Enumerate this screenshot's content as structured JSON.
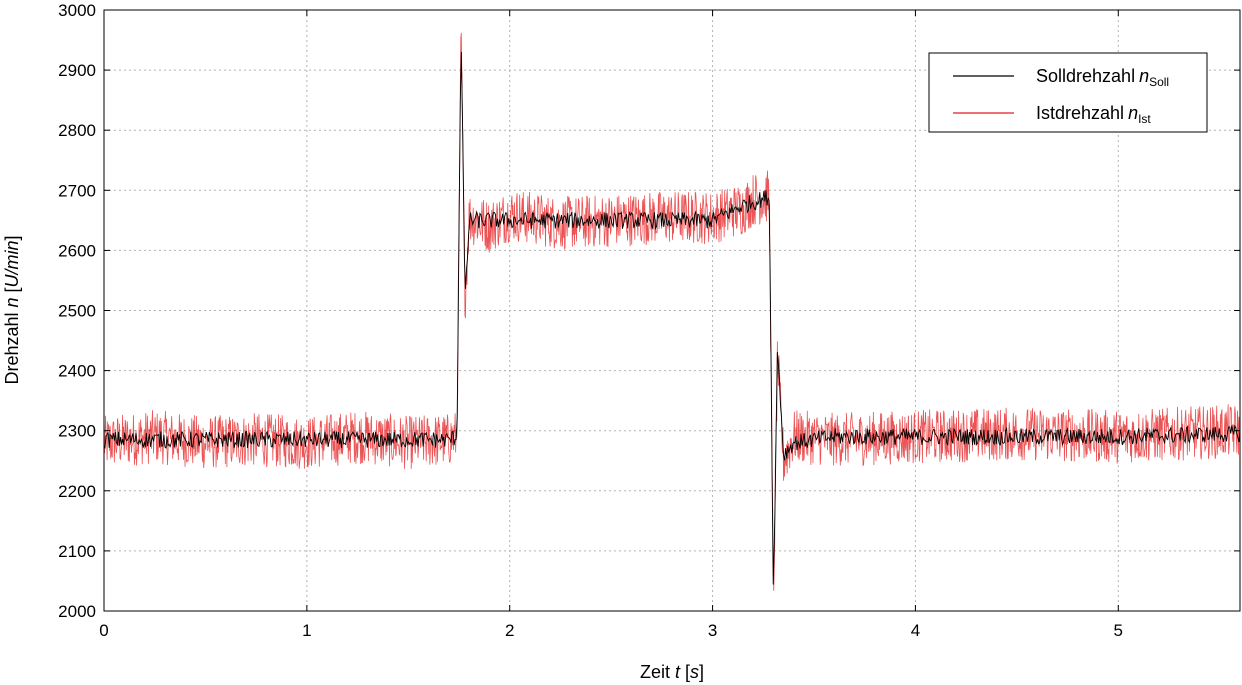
{
  "chart_data": {
    "type": "line",
    "xlabel": {
      "prefix": "Zeit ",
      "var": "t",
      "mid": " [",
      "unit": "s",
      "suffix": "]"
    },
    "ylabel": {
      "prefix": "Drehzahl ",
      "var": "n",
      "mid": " [",
      "unit": "U/min",
      "suffix": "]"
    },
    "xlim": [
      0,
      5.6
    ],
    "ylim": [
      2000,
      3000
    ],
    "x_ticks": [
      0,
      1,
      2,
      3,
      4,
      5
    ],
    "y_ticks": [
      2000,
      2100,
      2200,
      2300,
      2400,
      2500,
      2600,
      2700,
      2800,
      2900,
      3000
    ],
    "grid": true,
    "legend_position": "top-right",
    "series": [
      {
        "name": "Solldrehzahl",
        "var": "n",
        "sub": "Soll",
        "color": "#000000",
        "x": [
          0,
          0.25,
          0.5,
          0.75,
          1.0,
          1.25,
          1.5,
          1.7,
          1.74,
          1.76,
          1.78,
          1.8,
          1.9,
          2.0,
          2.25,
          2.5,
          2.75,
          3.0,
          3.15,
          3.2,
          3.28,
          3.3,
          3.32,
          3.35,
          3.4,
          3.6,
          4.0,
          4.5,
          5.0,
          5.6
        ],
        "y": [
          2285,
          2285,
          2285,
          2285,
          2285,
          2285,
          2285,
          2285,
          2290,
          2975,
          2510,
          2650,
          2650,
          2650,
          2650,
          2650,
          2650,
          2650,
          2675,
          2680,
          2690,
          2020,
          2440,
          2260,
          2280,
          2290,
          2290,
          2290,
          2290,
          2295
        ]
      },
      {
        "name": "Istdrehzahl",
        "var": "n",
        "sub": "Ist",
        "color": "#e41a1c",
        "x": [
          0,
          0.25,
          0.5,
          0.75,
          1.0,
          1.25,
          1.5,
          1.7,
          1.74,
          1.76,
          1.78,
          1.8,
          1.9,
          2.0,
          2.25,
          2.5,
          2.75,
          3.0,
          3.15,
          3.2,
          3.28,
          3.3,
          3.32,
          3.35,
          3.4,
          3.6,
          4.0,
          4.5,
          5.0,
          5.6
        ],
        "y": [
          2280,
          2290,
          2280,
          2285,
          2280,
          2290,
          2280,
          2285,
          2290,
          2960,
          2520,
          2655,
          2640,
          2660,
          2645,
          2650,
          2655,
          2655,
          2670,
          2685,
          2690,
          2010,
          2420,
          2250,
          2290,
          2285,
          2290,
          2295,
          2290,
          2300
        ],
        "noise_amplitude": 45
      }
    ]
  }
}
